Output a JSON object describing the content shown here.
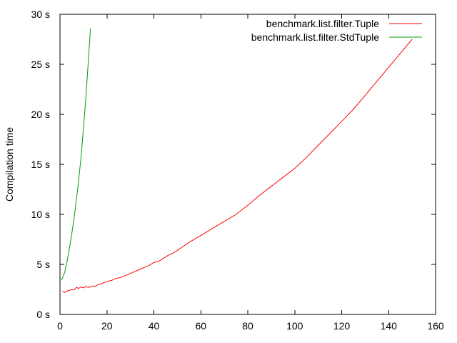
{
  "chart_data": {
    "type": "line",
    "title": "",
    "xlabel": "",
    "ylabel": "Compilation time",
    "xlim": [
      0,
      160
    ],
    "ylim": [
      0,
      30
    ],
    "x_ticks": [
      0,
      20,
      40,
      60,
      80,
      100,
      120,
      140,
      160
    ],
    "x_tick_labels": [
      "0",
      "20",
      "40",
      "60",
      "80",
      "100",
      "120",
      "140",
      "160"
    ],
    "y_ticks": [
      0,
      5,
      10,
      15,
      20,
      25,
      30
    ],
    "y_tick_labels": [
      "0 s",
      "5 s",
      "10 s",
      "15 s",
      "20 s",
      "25 s",
      "30 s"
    ],
    "grid": false,
    "legend_position": "top-right",
    "series": [
      {
        "name": "benchmark.list.filter.Tuple",
        "color": "#ff0000",
        "x": [
          1,
          2,
          3,
          4,
          5,
          6,
          7,
          8,
          9,
          10,
          11,
          12,
          13,
          14,
          15,
          16,
          18,
          20,
          22,
          24,
          26,
          28,
          30,
          32,
          34,
          36,
          38,
          40,
          42,
          44,
          46,
          48,
          50,
          55,
          60,
          65,
          70,
          75,
          80,
          85,
          90,
          95,
          100,
          105,
          110,
          115,
          120,
          125,
          130,
          135,
          140,
          145,
          150
        ],
        "y": [
          2.3,
          2.2,
          2.35,
          2.4,
          2.5,
          2.45,
          2.7,
          2.6,
          2.75,
          2.65,
          2.8,
          2.7,
          2.75,
          2.85,
          2.8,
          2.95,
          3.1,
          3.3,
          3.4,
          3.6,
          3.7,
          3.9,
          4.1,
          4.3,
          4.5,
          4.7,
          4.9,
          5.2,
          5.3,
          5.6,
          5.9,
          6.1,
          6.4,
          7.2,
          7.9,
          8.6,
          9.3,
          10.0,
          10.9,
          11.9,
          12.8,
          13.7,
          14.6,
          15.7,
          16.9,
          18.1,
          19.3,
          20.5,
          21.9,
          23.3,
          24.7,
          26.1,
          27.5
        ]
      },
      {
        "name": "benchmark.list.filter.StdTuple",
        "color": "#00a000",
        "x": [
          0.5,
          1,
          2,
          3,
          4,
          5,
          6,
          7,
          8,
          9,
          10,
          11,
          12,
          13
        ],
        "y": [
          3.4,
          3.6,
          4.2,
          5.3,
          6.6,
          8.0,
          9.6,
          11.5,
          13.5,
          15.8,
          18.6,
          21.6,
          25.0,
          28.6
        ]
      }
    ]
  }
}
